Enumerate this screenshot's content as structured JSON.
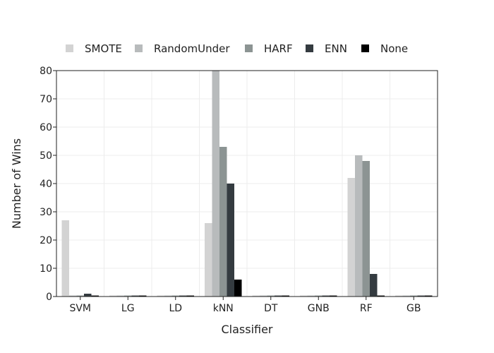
{
  "chart_data": {
    "type": "bar",
    "title": "",
    "xlabel": "Classifier",
    "ylabel": "Number of Wins",
    "categories": [
      "SVM",
      "LG",
      "LD",
      "kNN",
      "DT",
      "GNB",
      "RF",
      "GB"
    ],
    "ylim": [
      0,
      80
    ],
    "yticks": [
      0,
      10,
      20,
      30,
      40,
      50,
      60,
      70,
      80
    ],
    "grid": true,
    "legend_position": "top",
    "series": [
      {
        "name": "SMOTE",
        "color": "#d3d3d3",
        "values": [
          27,
          0,
          0,
          26,
          0,
          0,
          42,
          0
        ]
      },
      {
        "name": "RandomUnder",
        "color": "#b8bbbc",
        "values": [
          0,
          0,
          0,
          80,
          0,
          0,
          50,
          0
        ]
      },
      {
        "name": "HARF",
        "color": "#8c9493",
        "values": [
          0,
          0,
          0,
          53,
          0,
          0,
          48,
          0
        ]
      },
      {
        "name": "ENN",
        "color": "#343b40",
        "values": [
          1,
          0,
          0,
          40,
          0,
          0,
          8,
          0
        ]
      },
      {
        "name": "None",
        "color": "#000000",
        "values": [
          0,
          0,
          0,
          6,
          0,
          0,
          0,
          0
        ]
      }
    ]
  }
}
